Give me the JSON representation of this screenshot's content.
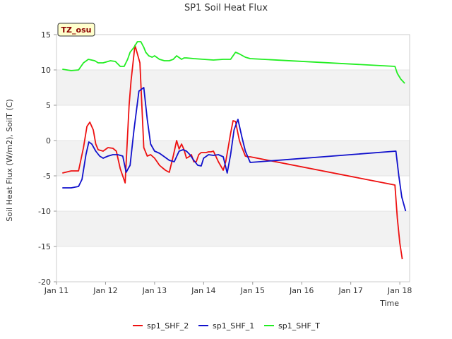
{
  "chart_data": {
    "type": "line",
    "title": "SP1 Soil Heat Flux",
    "xlabel": "Time",
    "ylabel": "Soil Heat Flux (W/m2), SoilT (C)",
    "xlim": [
      11.0,
      18.2
    ],
    "ylim": [
      -20,
      15
    ],
    "x_ticks": [
      11,
      12,
      13,
      14,
      15,
      16,
      17,
      18
    ],
    "x_tick_labels": [
      "Jan 11",
      "Jan 12",
      "Jan 13",
      "Jan 14",
      "Jan 15",
      "Jan 16",
      "Jan 17",
      "Jan 18"
    ],
    "y_ticks": [
      -20,
      -15,
      -10,
      -5,
      0,
      5,
      10,
      15
    ],
    "y_tick_labels": [
      "-20",
      "-15",
      "-10",
      "-5",
      "0",
      "5",
      "10",
      "15"
    ],
    "annotation": "TZ_osu",
    "series": [
      {
        "name": "sp1_SHF_2",
        "color": "#ee1111",
        "x": [
          11.12,
          11.3,
          11.45,
          11.55,
          11.62,
          11.68,
          11.75,
          11.8,
          11.85,
          11.95,
          12.05,
          12.15,
          12.22,
          12.3,
          12.4,
          12.48,
          12.52,
          12.6,
          12.7,
          12.78,
          12.85,
          12.92,
          13.0,
          13.05,
          13.1,
          13.15,
          13.22,
          13.3,
          13.38,
          13.45,
          13.5,
          13.55,
          13.6,
          13.65,
          13.7,
          13.75,
          13.8,
          13.85,
          13.9,
          13.95,
          14.0,
          14.05,
          14.1,
          14.15,
          14.2,
          14.3,
          14.4,
          14.45,
          14.5,
          14.55,
          14.6,
          14.65,
          14.7,
          14.73,
          14.77,
          14.8,
          14.85,
          14.9,
          14.95,
          17.9,
          17.95,
          18.0,
          18.05
        ],
        "y": [
          -4.6,
          -4.3,
          -4.3,
          -1.0,
          2.0,
          2.6,
          1.5,
          -0.5,
          -1.3,
          -1.5,
          -1.0,
          -1.1,
          -1.5,
          -4.0,
          -6.0,
          5.0,
          8.5,
          13.5,
          11.0,
          -1.0,
          -2.2,
          -2.0,
          -2.5,
          -3.0,
          -3.5,
          -3.8,
          -4.2,
          -4.5,
          -2.2,
          0.0,
          -1.2,
          -0.5,
          -1.3,
          -2.5,
          -2.3,
          -2.0,
          -3.0,
          -3.0,
          -2.0,
          -1.7,
          -1.7,
          -1.7,
          -1.6,
          -1.6,
          -1.5,
          -3.0,
          -4.2,
          -3.0,
          -1.0,
          1.0,
          2.8,
          2.7,
          1.0,
          0.0,
          -0.8,
          -1.3,
          -2.2,
          -2.3,
          -2.3,
          -6.3,
          -11.0,
          -14.5,
          -16.8
        ]
      },
      {
        "name": "sp1_SHF_1",
        "color": "#1111cc",
        "x": [
          11.12,
          11.3,
          11.45,
          11.52,
          11.6,
          11.66,
          11.72,
          11.8,
          11.88,
          11.95,
          12.05,
          12.15,
          12.25,
          12.35,
          12.42,
          12.5,
          12.58,
          12.68,
          12.78,
          12.85,
          12.92,
          13.0,
          13.1,
          13.2,
          13.3,
          13.4,
          13.5,
          13.58,
          13.65,
          13.72,
          13.8,
          13.88,
          13.95,
          14.0,
          14.1,
          14.2,
          14.3,
          14.4,
          14.48,
          14.55,
          14.62,
          14.7,
          14.78,
          14.85,
          14.95,
          17.92,
          17.98,
          18.04,
          18.12
        ],
        "y": [
          -6.7,
          -6.7,
          -6.5,
          -5.5,
          -2.0,
          -0.2,
          -0.5,
          -1.5,
          -2.2,
          -2.5,
          -2.2,
          -2.0,
          -2.0,
          -2.2,
          -4.5,
          -3.5,
          1.5,
          7.0,
          7.5,
          3.0,
          -0.5,
          -1.5,
          -1.8,
          -2.3,
          -2.8,
          -3.0,
          -1.5,
          -1.3,
          -1.5,
          -2.0,
          -2.8,
          -3.5,
          -3.6,
          -2.5,
          -2.0,
          -2.1,
          -2.0,
          -2.3,
          -4.6,
          -2.0,
          1.5,
          3.0,
          0.5,
          -1.5,
          -3.1,
          -1.5,
          -5.0,
          -8.0,
          -10.0
        ]
      },
      {
        "name": "sp1_SHF_T",
        "color": "#22ee22",
        "x": [
          11.12,
          11.3,
          11.45,
          11.55,
          11.65,
          11.78,
          11.85,
          11.95,
          12.1,
          12.2,
          12.3,
          12.38,
          12.45,
          12.5,
          12.58,
          12.65,
          12.72,
          12.78,
          12.82,
          12.88,
          12.95,
          13.0,
          13.1,
          13.2,
          13.3,
          13.38,
          13.45,
          13.55,
          13.6,
          13.65,
          13.8,
          14.0,
          14.2,
          14.4,
          14.55,
          14.65,
          14.72,
          14.85,
          14.95,
          17.9,
          17.95,
          18.02,
          18.1
        ],
        "y": [
          10.1,
          9.9,
          10.0,
          11.0,
          11.5,
          11.3,
          11.0,
          11.0,
          11.3,
          11.2,
          10.5,
          10.5,
          11.5,
          12.5,
          13.2,
          14.0,
          14.0,
          13.2,
          12.5,
          12.0,
          11.8,
          12.0,
          11.5,
          11.3,
          11.3,
          11.5,
          12.0,
          11.5,
          11.7,
          11.7,
          11.6,
          11.5,
          11.4,
          11.5,
          11.5,
          12.5,
          12.3,
          11.8,
          11.6,
          10.5,
          9.5,
          8.7,
          8.1
        ]
      }
    ]
  }
}
